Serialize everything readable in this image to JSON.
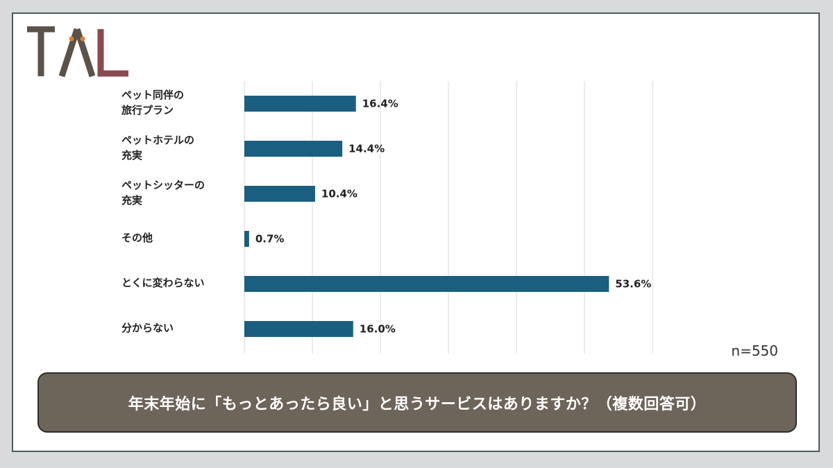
{
  "logo": {
    "text": "TAL",
    "colors": {
      "t": "#5b524a",
      "a": "#5b524a",
      "l": "#8a4a52",
      "icon": "#e07f2a"
    }
  },
  "chart_data": {
    "type": "bar",
    "orientation": "horizontal",
    "categories": [
      "ペット同伴の\n旅行プラン",
      "ペットホテルの\n充実",
      "ペットシッターの\n充実",
      "その他",
      "とくに変わらない",
      "分からない"
    ],
    "values": [
      16.4,
      14.4,
      10.4,
      0.7,
      53.6,
      16.0
    ],
    "value_labels": [
      "16.4%",
      "14.4%",
      "10.4%",
      "0.7%",
      "53.6%",
      "16.0%"
    ],
    "xlim": [
      0,
      60
    ],
    "grid": true,
    "bar_color": "#1a5f7f",
    "note": "n=550"
  },
  "question": "年末年始に「もっとあったら良い」と思うサービスはありますか？（複数回答可）"
}
